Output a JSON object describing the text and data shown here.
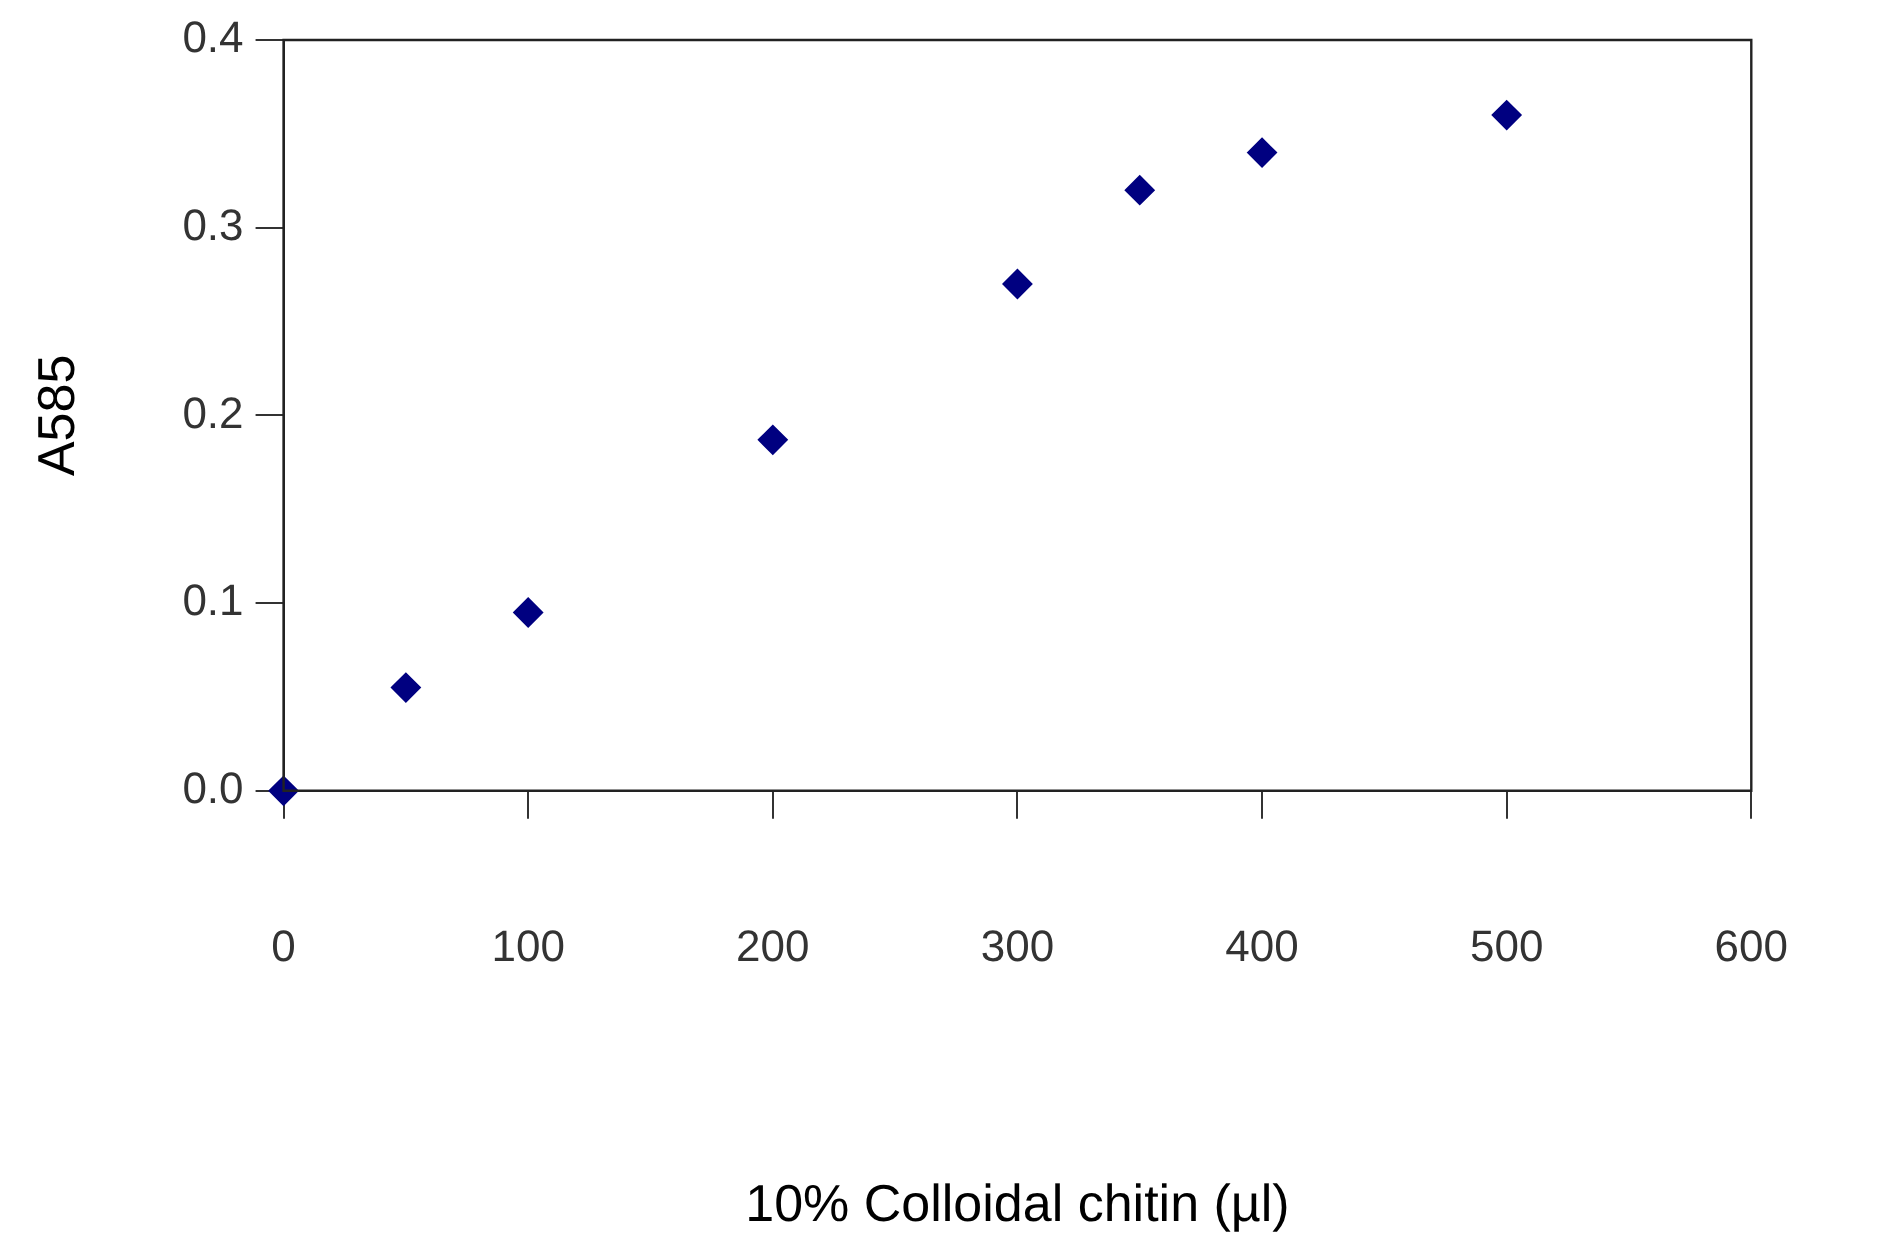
{
  "chart_data": {
    "type": "scatter",
    "xlabel": "10% Colloidal chitin (µl)",
    "ylabel": "A585",
    "x": [
      0,
      50,
      100,
      200,
      300,
      350,
      400,
      500
    ],
    "series": [
      {
        "color": "#000080",
        "values": [
          0,
          0.055,
          0.095,
          0.187,
          0.27,
          0.32,
          0.34,
          0.36
        ]
      }
    ],
    "xlim": [
      0,
      600
    ],
    "xticks": [
      0,
      100,
      200,
      300,
      400,
      500,
      600
    ],
    "ylim": [
      0,
      0.4
    ],
    "yticks": [
      {
        "value": 0,
        "label": "0.0"
      },
      0.1,
      0.2,
      0.3,
      0.4
    ],
    "marker": "diamond",
    "grid": false,
    "legend": false
  }
}
